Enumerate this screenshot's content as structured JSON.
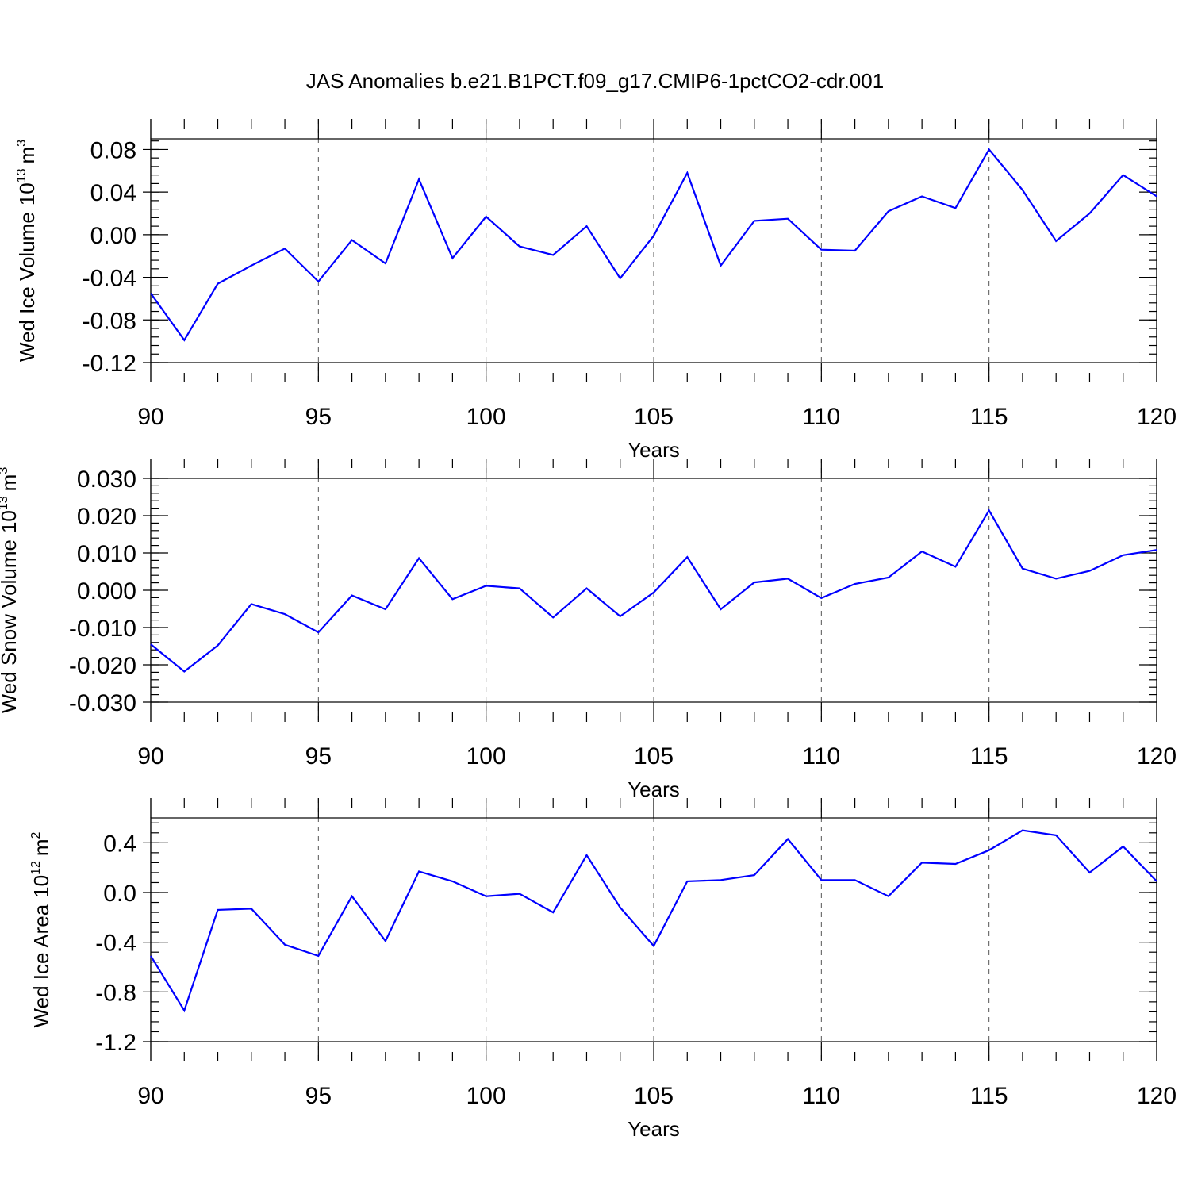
{
  "title": "JAS Anomalies b.e21.B1PCT.f09_g17.CMIP6-1pctCO2-cdr.001",
  "line_color": "#0000ff",
  "chart_data": [
    {
      "type": "line",
      "ylabel": "Wed Ice Volume",
      "unit_base": "10",
      "unit_exp": "13",
      "unit_var": "m",
      "unit_var_exp": "3",
      "xlabel": "Years",
      "xlim": [
        90,
        120
      ],
      "ylim": [
        -0.12,
        0.09
      ],
      "xticks": [
        "90",
        "95",
        "100",
        "105",
        "110",
        "115",
        "120"
      ],
      "yticks": [
        "0.08",
        "0.04",
        "0.00",
        "-0.04",
        "-0.08",
        "-0.12"
      ],
      "x": [
        90,
        91,
        92,
        93,
        94,
        95,
        96,
        97,
        98,
        99,
        100,
        101,
        102,
        103,
        104,
        105,
        106,
        107,
        108,
        109,
        110,
        111,
        112,
        113,
        114,
        115,
        116,
        117,
        118,
        119,
        120
      ],
      "values": [
        -0.055,
        -0.099,
        -0.046,
        -0.029,
        -0.013,
        -0.044,
        -0.005,
        -0.027,
        0.052,
        -0.022,
        0.017,
        -0.011,
        -0.019,
        0.008,
        -0.041,
        -0.001,
        0.058,
        -0.029,
        0.013,
        0.015,
        -0.014,
        -0.015,
        0.022,
        0.036,
        0.025,
        0.08,
        0.042,
        -0.006,
        0.02,
        0.056,
        0.036
      ]
    },
    {
      "type": "line",
      "ylabel": "Wed Snow Volume",
      "unit_base": "10",
      "unit_exp": "13",
      "unit_var": "m",
      "unit_var_exp": "3",
      "xlabel": "Years",
      "xlim": [
        90,
        120
      ],
      "ylim": [
        -0.03,
        0.03
      ],
      "xticks": [
        "90",
        "95",
        "100",
        "105",
        "110",
        "115",
        "120"
      ],
      "yticks": [
        "0.030",
        "0.020",
        "0.010",
        "0.000",
        "-0.010",
        "-0.020",
        "-0.030"
      ],
      "x": [
        90,
        91,
        92,
        93,
        94,
        95,
        96,
        97,
        98,
        99,
        100,
        101,
        102,
        103,
        104,
        105,
        106,
        107,
        108,
        109,
        110,
        111,
        112,
        113,
        114,
        115,
        116,
        117,
        118,
        119,
        120
      ],
      "values": [
        -0.0145,
        -0.0218,
        -0.0148,
        -0.0037,
        -0.0064,
        -0.0113,
        -0.0014,
        -0.0051,
        0.0086,
        -0.0024,
        0.0012,
        0.0005,
        -0.0073,
        0.0005,
        -0.007,
        -0.0006,
        0.0089,
        -0.0051,
        0.0021,
        0.0031,
        -0.0021,
        0.0017,
        0.0034,
        0.0104,
        0.0063,
        0.0214,
        0.0058,
        0.0031,
        0.0052,
        0.0094,
        0.0108
      ]
    },
    {
      "type": "line",
      "ylabel": "Wed Ice Area",
      "unit_base": "10",
      "unit_exp": "12",
      "unit_var": "m",
      "unit_var_exp": "2",
      "xlabel": "Years",
      "xlim": [
        90,
        120
      ],
      "ylim": [
        -1.2,
        0.6
      ],
      "xticks": [
        "90",
        "95",
        "100",
        "105",
        "110",
        "115",
        "120"
      ],
      "yticks": [
        "0.4",
        "0.0",
        "-0.4",
        "-0.8",
        "-1.2"
      ],
      "x": [
        90,
        91,
        92,
        93,
        94,
        95,
        96,
        97,
        98,
        99,
        100,
        101,
        102,
        103,
        104,
        105,
        106,
        107,
        108,
        109,
        110,
        111,
        112,
        113,
        114,
        115,
        116,
        117,
        118,
        119,
        120
      ],
      "values": [
        -0.51,
        -0.95,
        -0.14,
        -0.13,
        -0.42,
        -0.51,
        -0.03,
        -0.39,
        0.17,
        0.09,
        -0.03,
        -0.01,
        -0.16,
        0.3,
        -0.12,
        -0.43,
        0.09,
        0.1,
        0.14,
        0.43,
        0.1,
        0.1,
        -0.03,
        0.24,
        0.23,
        0.34,
        0.5,
        0.46,
        0.16,
        0.37,
        0.09
      ]
    }
  ]
}
